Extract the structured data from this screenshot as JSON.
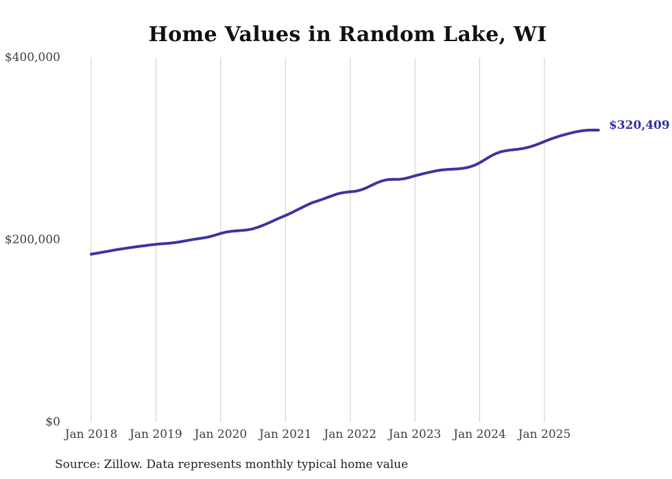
{
  "chart_data": {
    "type": "line",
    "title": "Home Values in Random Lake, WI",
    "xlabel": "",
    "ylabel": "",
    "ylim": [
      0,
      400000
    ],
    "grid": "vertical-only",
    "legend": "none",
    "end_label": "$320,409",
    "end_value": 320409,
    "x_tick_labels": [
      "Jan 2018",
      "Jan 2019",
      "Jan 2020",
      "Jan 2021",
      "Jan 2022",
      "Jan 2023",
      "Jan 2024",
      "Jan 2025"
    ],
    "y_ticks": [
      {
        "label": "$0",
        "value": 0
      },
      {
        "label": "$200,000",
        "value": 200000
      },
      {
        "label": "$400,000",
        "value": 400000
      }
    ],
    "series": [
      {
        "name": "Monthly typical home value",
        "x_start": "Jan 2018",
        "x_interval": "monthly",
        "x_end": "Nov 2025",
        "values": [
          184300,
          185300,
          186300,
          187400,
          188500,
          189500,
          190400,
          191300,
          192100,
          192900,
          193600,
          194400,
          195100,
          195700,
          196100,
          196600,
          197400,
          198400,
          199500,
          200500,
          201400,
          202300,
          203500,
          205200,
          207100,
          208500,
          209400,
          209900,
          210300,
          211000,
          212200,
          214000,
          216300,
          218900,
          221600,
          224200,
          226700,
          229400,
          232300,
          235300,
          238200,
          240800,
          242800,
          244800,
          247000,
          249200,
          251000,
          252100,
          252700,
          253300,
          254800,
          257100,
          259900,
          262700,
          264900,
          266100,
          266500,
          266400,
          267100,
          268600,
          270300,
          271700,
          273200,
          274600,
          275800,
          276700,
          277200,
          277500,
          277900,
          278600,
          279800,
          281700,
          284600,
          288100,
          291700,
          294700,
          296800,
          298000,
          298700,
          299300,
          300200,
          301500,
          303300,
          305500,
          307900,
          310200,
          312300,
          314200,
          315900,
          317400,
          318700,
          319700,
          320300,
          320450,
          320409
        ]
      }
    ],
    "colors": {
      "line": "#3a35a0",
      "end_label": "#34309e",
      "grid": "#cccccc",
      "tick_text": "#3d3d3d",
      "title_text": "#111111"
    }
  },
  "source_note": "Source: Zillow. Data represents monthly typical home value"
}
